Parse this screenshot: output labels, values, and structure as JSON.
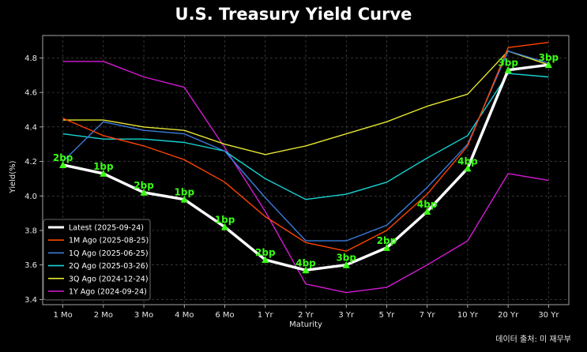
{
  "source_note": "데이터 출처: 미 재무부",
  "chart_data": {
    "type": "line",
    "title": "U.S. Treasury Yield Curve",
    "xlabel": "Maturity",
    "ylabel": "Yield(%)",
    "ylim": [
      3.37,
      4.93
    ],
    "yticks": [
      "3.4",
      "3.6",
      "3.8",
      "4.0",
      "4.2",
      "4.4",
      "4.6",
      "4.8"
    ],
    "grid": true,
    "legend_position": "bottom-left",
    "categories": [
      "1 Mo",
      "2 Mo",
      "3 Mo",
      "4 Mo",
      "6 Mo",
      "1 Yr",
      "2 Yr",
      "3 Yr",
      "5 Yr",
      "7 Yr",
      "10 Yr",
      "20 Yr",
      "30 Yr"
    ],
    "series": [
      {
        "name": "Latest (2025-09-24)",
        "color": "#ffffff",
        "values": [
          4.18,
          4.13,
          4.02,
          3.98,
          3.82,
          3.63,
          3.57,
          3.6,
          3.7,
          3.91,
          4.16,
          4.73,
          4.76
        ]
      },
      {
        "name": "1M Ago (2025-08-25)",
        "color": "#ff4500",
        "values": [
          4.45,
          4.35,
          4.29,
          4.21,
          4.08,
          3.88,
          3.73,
          3.68,
          3.8,
          4.01,
          4.29,
          4.86,
          4.89
        ]
      },
      {
        "name": "1Q Ago (2025-06-25)",
        "color": "#3b7ddd",
        "values": [
          4.2,
          4.43,
          4.38,
          4.36,
          4.26,
          3.99,
          3.74,
          3.74,
          3.83,
          4.05,
          4.3,
          4.84,
          4.77
        ]
      },
      {
        "name": "2Q Ago (2025-03-26)",
        "color": "#17d4d4",
        "values": [
          4.36,
          4.33,
          4.33,
          4.31,
          4.26,
          4.1,
          3.98,
          4.01,
          4.08,
          4.22,
          4.35,
          4.71,
          4.69
        ]
      },
      {
        "name": "3Q Ago (2024-12-24)",
        "color": "#e6e632",
        "values": [
          4.44,
          4.44,
          4.4,
          4.38,
          4.3,
          4.24,
          4.29,
          4.36,
          4.43,
          4.52,
          4.59,
          4.84,
          4.76
        ]
      },
      {
        "name": "1Y Ago (2024-09-24)",
        "color": "#d41ad4",
        "values": [
          4.78,
          4.78,
          4.69,
          4.63,
          4.28,
          3.91,
          3.49,
          3.44,
          3.47,
          3.6,
          3.74,
          4.13,
          4.09
        ]
      }
    ],
    "annotations": [
      "2bp",
      "1bp",
      "2bp",
      "1bp",
      "1bp",
      "2bp",
      "4bp",
      "3bp",
      "2bp",
      "4bp",
      "4bp",
      "3bp",
      "3bp"
    ]
  }
}
